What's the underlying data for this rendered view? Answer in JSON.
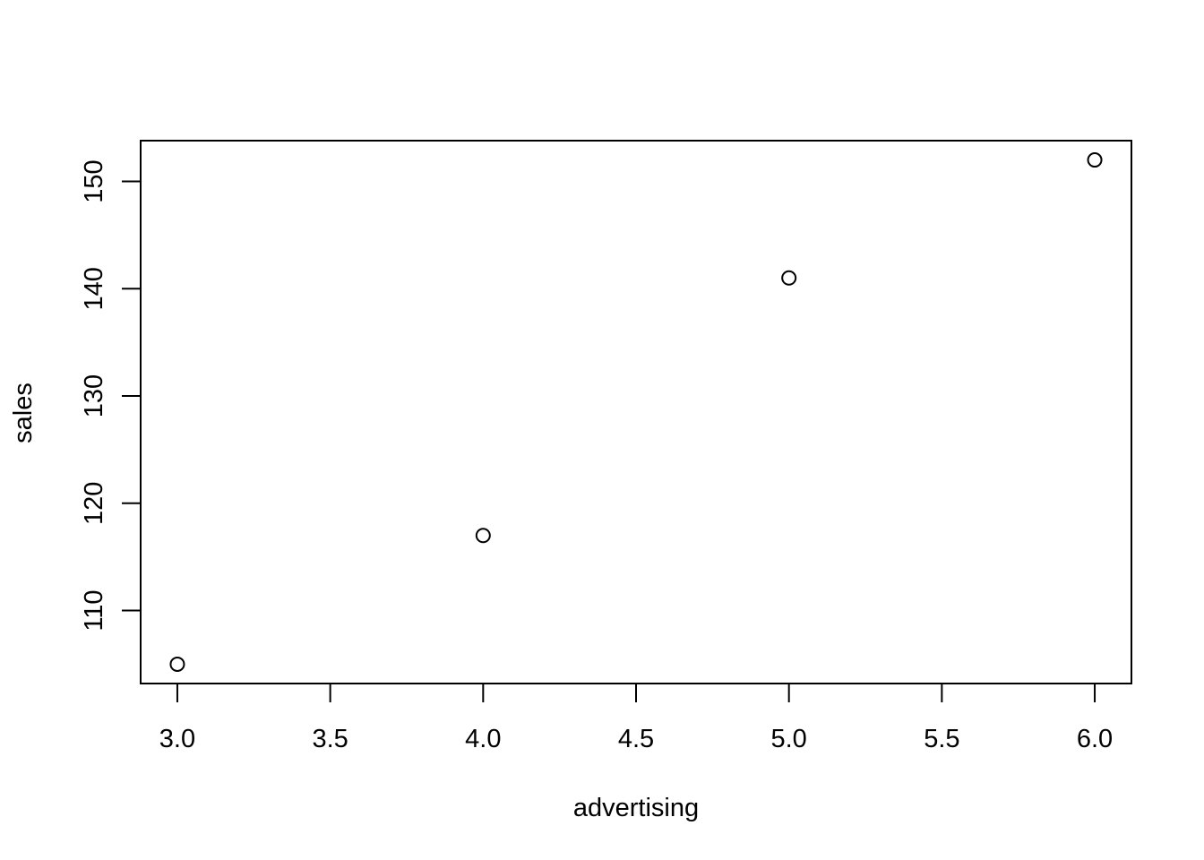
{
  "chart_data": {
    "type": "scatter",
    "title": "",
    "xlabel": "advertising",
    "ylabel": "sales",
    "x": [
      3,
      4,
      5,
      6
    ],
    "y": [
      105,
      117,
      141,
      152
    ],
    "xlim": [
      2.88,
      6.12
    ],
    "ylim": [
      103.2,
      153.8
    ],
    "x_ticks": [
      3.0,
      3.5,
      4.0,
      4.5,
      5.0,
      5.5,
      6.0
    ],
    "x_tick_labels": [
      "3.0",
      "3.5",
      "4.0",
      "4.5",
      "5.0",
      "5.5",
      "6.0"
    ],
    "y_ticks": [
      110,
      120,
      130,
      140,
      150
    ],
    "y_tick_labels": [
      "110",
      "120",
      "130",
      "140",
      "150"
    ],
    "grid": false,
    "legend": "none",
    "marker": "open-circle",
    "colors": {
      "foreground": "#000000",
      "background": "#ffffff"
    }
  }
}
